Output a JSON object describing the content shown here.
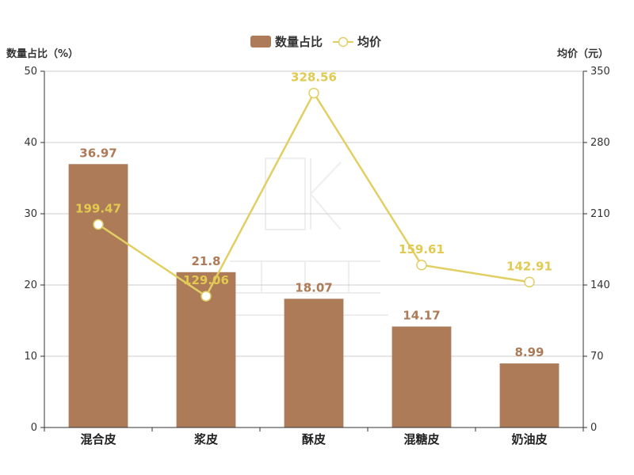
{
  "chart_data": {
    "type": "bar",
    "categories": [
      "混合皮",
      "浆皮",
      "酥皮",
      "混糖皮",
      "奶油皮"
    ],
    "series": [
      {
        "name": "数量占比",
        "type": "bar",
        "axis": "left",
        "values": [
          36.97,
          21.8,
          18.07,
          14.17,
          8.99
        ],
        "color": "#ad7b57"
      },
      {
        "name": "均价",
        "type": "line",
        "axis": "right",
        "values": [
          199.47,
          129.06,
          328.56,
          159.61,
          142.91
        ],
        "color": "#e2cf64"
      }
    ],
    "ylabel": "数量占比（%）",
    "ylabel_right": "均价（元）",
    "ylim": [
      0,
      50
    ],
    "yticks": [
      0,
      10,
      20,
      30,
      40,
      50
    ],
    "ylim_right": [
      0,
      350
    ],
    "yticks_right": [
      0,
      70,
      140,
      210,
      280,
      350
    ],
    "grid": true,
    "legend": "top-center"
  }
}
